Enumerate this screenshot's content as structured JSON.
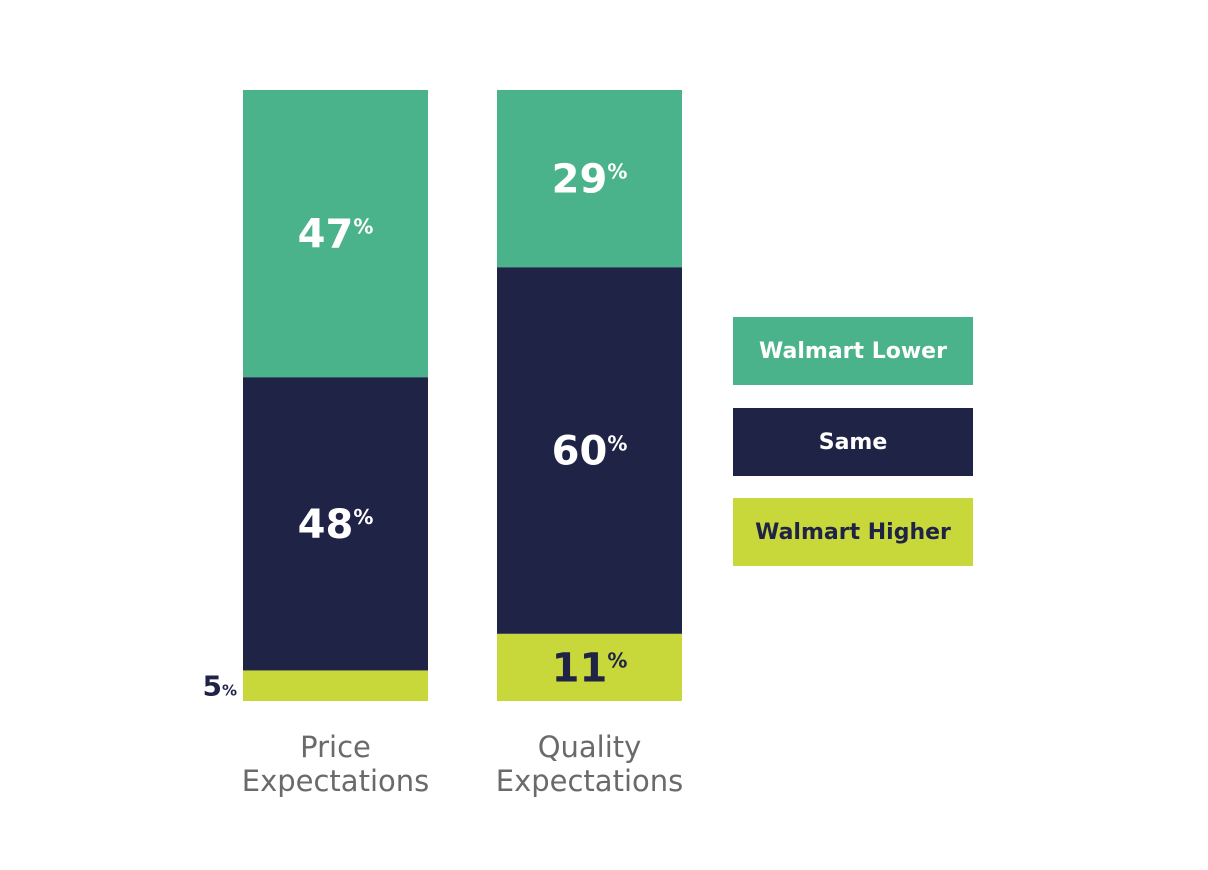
{
  "chart_data": {
    "type": "bar",
    "stacked": true,
    "categories": [
      [
        "Price",
        "Expectations"
      ],
      [
        "Quality",
        "Expectations"
      ]
    ],
    "series": [
      {
        "name": "Walmart Higher",
        "values": [
          5,
          11
        ],
        "color": "#c8d73a",
        "text_color": "#1f2447"
      },
      {
        "name": "Same",
        "values": [
          48,
          60
        ],
        "color": "#1f2447",
        "text_color": "#ffffff"
      },
      {
        "name": "Walmart Lower",
        "values": [
          47,
          29
        ],
        "color": "#4bb38b",
        "text_color": "#ffffff"
      }
    ],
    "unit": "%",
    "ylim": [
      0,
      100
    ],
    "legend_position": "right",
    "grid": false
  },
  "legend": [
    {
      "label": "Walmart Lower",
      "color": "#4bb38b",
      "text_color": "#ffffff"
    },
    {
      "label": "Same",
      "color": "#1f2447",
      "text_color": "#ffffff"
    },
    {
      "label": "Walmart Higher",
      "color": "#c8d73a",
      "text_color": "#1f2447"
    }
  ]
}
